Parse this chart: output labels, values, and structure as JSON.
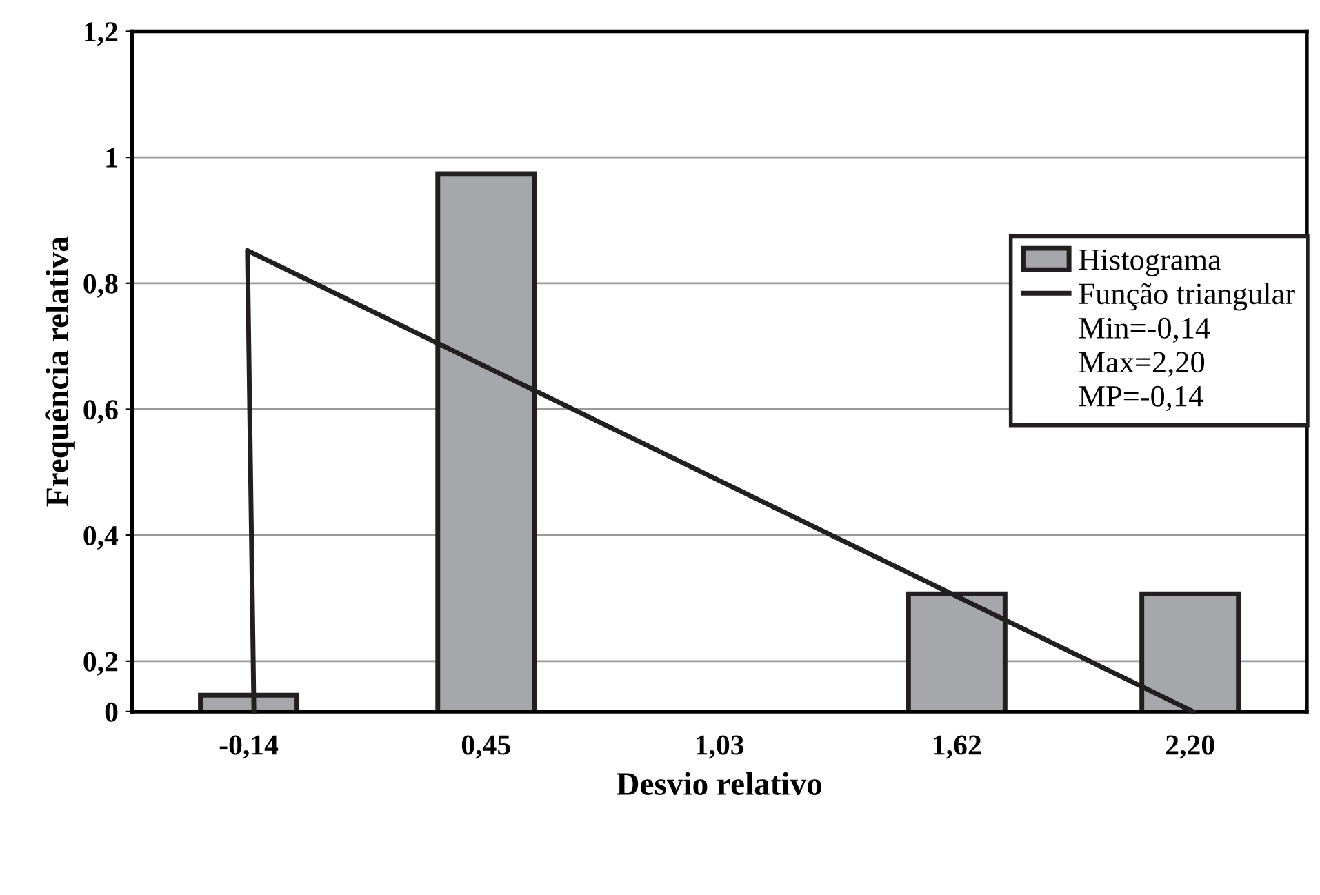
{
  "chart_data": {
    "type": "bar",
    "xlabel": "Desvio relativo",
    "ylabel": "Frequência relativa",
    "x": [
      -0.14,
      0.45,
      1.03,
      1.62,
      2.2
    ],
    "xlim": [
      -0.43,
      2.49
    ],
    "xticks": [
      {
        "value": -0.14,
        "label": "-0,14"
      },
      {
        "value": 0.45,
        "label": "0,45"
      },
      {
        "value": 1.03,
        "label": "1,03"
      },
      {
        "value": 1.62,
        "label": "1,62"
      },
      {
        "value": 2.2,
        "label": "2,20"
      }
    ],
    "series": [
      {
        "name": "Histograma",
        "color": "#a6a7ab",
        "values": [
          0.146,
          0.974,
          null,
          0.307,
          0.307
        ]
      },
      {
        "name": "Função triangular",
        "type": "line",
        "color": "#231f20",
        "x": [
          -0.127,
          -0.143,
          2.207
        ],
        "values": [
          0.12,
          0.852,
          0.12
        ]
      }
    ],
    "ylim": [
      0.12,
      1.2
    ],
    "yticks": [
      {
        "value": 0.12,
        "label": "0"
      },
      {
        "value": 0.2,
        "label": "0,2"
      },
      {
        "value": 0.4,
        "label": "0,4"
      },
      {
        "value": 0.6,
        "label": "0,6"
      },
      {
        "value": 0.8,
        "label": "0,8"
      },
      {
        "value": 1,
        "label": "1"
      },
      {
        "value": 1.2,
        "label": "1,2"
      }
    ],
    "grid": "y",
    "legend": "right",
    "marker": "none",
    "line_style": "solid",
    "annotations": [
      "Min=-0,14",
      "Max=2,20",
      "MP=-0,14"
    ]
  }
}
